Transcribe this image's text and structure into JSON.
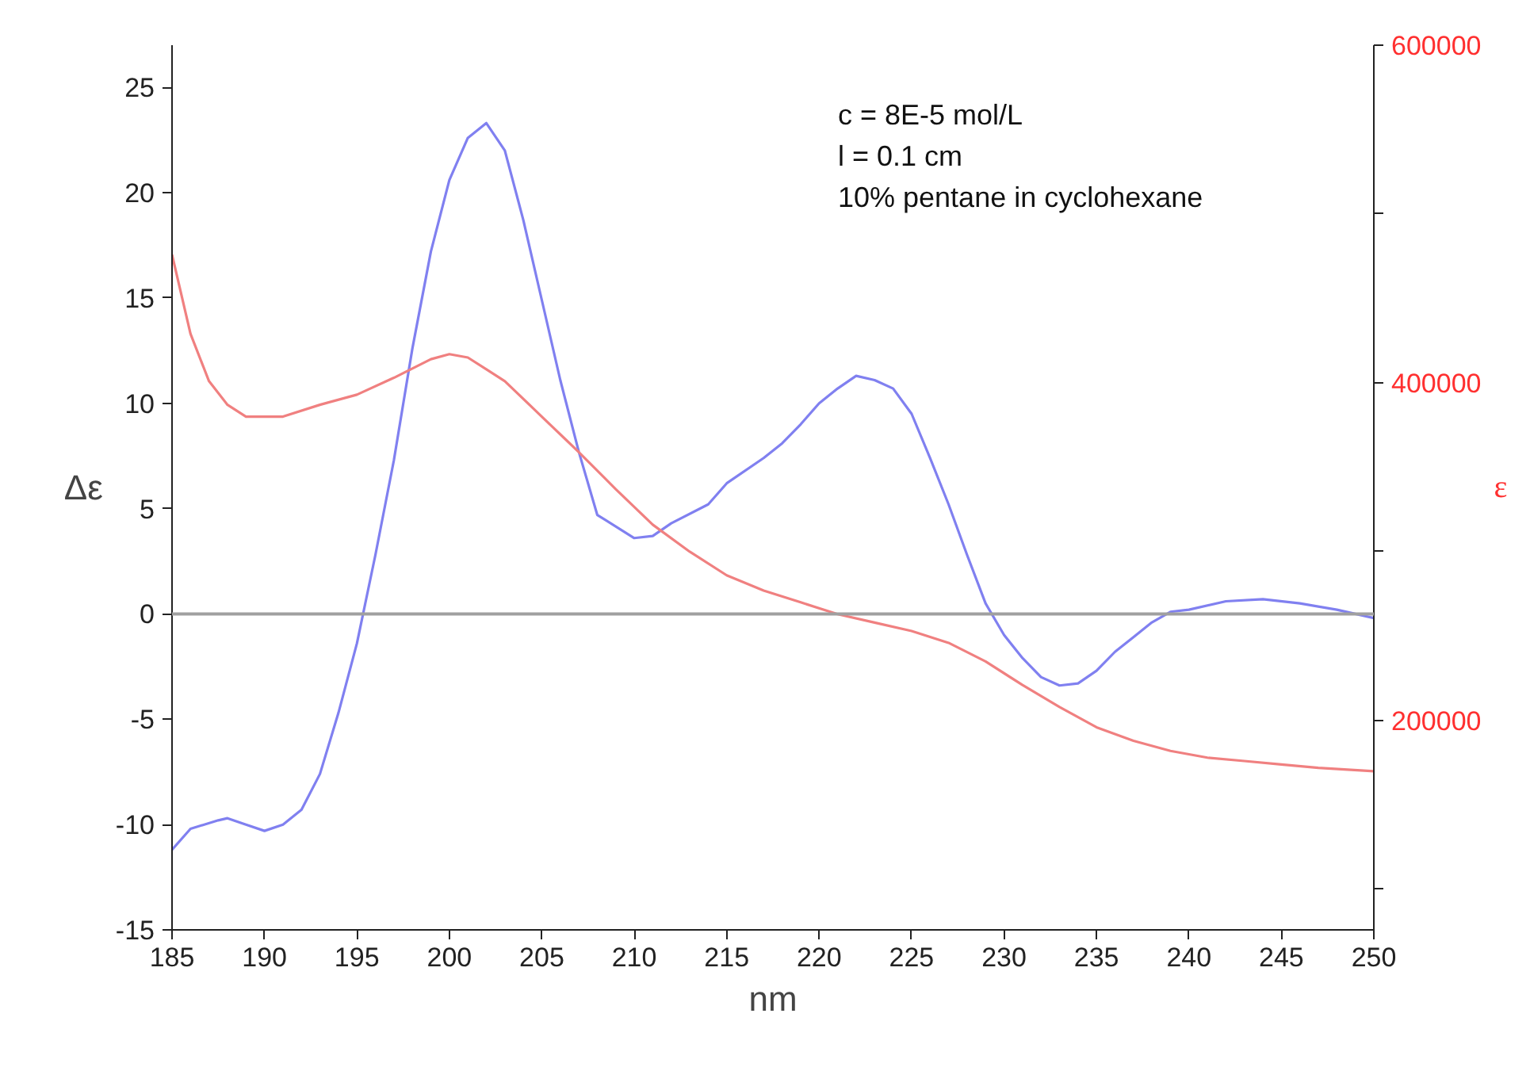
{
  "chart_data": {
    "type": "line",
    "xlabel": "nm",
    "ylabel": "Δε",
    "y2label": "ε",
    "annotations": [
      "c = 8E-5 mol/L",
      "l = 0.1 cm",
      "10% pentane in cyclohexane"
    ],
    "xlim": [
      185,
      250
    ],
    "xticks": [
      185,
      190,
      195,
      200,
      205,
      210,
      215,
      220,
      225,
      230,
      235,
      240,
      245,
      250
    ],
    "ylim": [
      -15,
      27
    ],
    "yticks": [
      -15,
      -10,
      -5,
      0,
      5,
      10,
      15,
      20,
      25
    ],
    "y2lim": [
      76000,
      600000
    ],
    "y2ticks": [
      {
        "value": 100000,
        "label": null
      },
      200000,
      {
        "value": 300000,
        "label": null
      },
      400000,
      {
        "value": 500000,
        "label": null
      },
      600000
    ],
    "grid": false,
    "ref_lines": [
      {
        "axis": "y",
        "value": 0,
        "color": "#a0a0a0"
      }
    ],
    "series": [
      {
        "color": "#8080f0",
        "x": [
          185,
          186,
          187.5,
          188,
          189,
          190,
          191,
          192,
          193,
          194,
          195,
          196,
          197,
          198,
          199,
          200,
          201,
          202,
          203,
          204,
          205,
          206,
          207,
          208,
          210,
          211,
          212,
          214,
          215,
          217,
          218,
          219,
          220,
          221,
          222,
          223,
          224,
          225,
          226,
          227,
          228,
          229,
          230,
          231,
          232,
          233,
          234,
          235,
          236,
          237,
          238,
          239,
          240,
          242,
          244,
          246,
          248,
          250
        ],
        "values": [
          -11.2,
          -10.2,
          -9.8,
          -9.7,
          -10.0,
          -10.3,
          -10.0,
          -9.3,
          -7.6,
          -4.7,
          -1.4,
          2.8,
          7.3,
          12.6,
          17.2,
          20.6,
          22.6,
          23.3,
          22.0,
          18.7,
          14.9,
          11.1,
          7.7,
          4.7,
          3.6,
          3.7,
          4.3,
          5.2,
          6.2,
          7.4,
          8.1,
          9.0,
          10.0,
          10.7,
          11.3,
          11.1,
          10.7,
          9.5,
          7.4,
          5.2,
          2.8,
          0.5,
          -1.0,
          -2.1,
          -3.0,
          -3.4,
          -3.3,
          -2.7,
          -1.8,
          -1.1,
          -0.4,
          0.1,
          0.2,
          0.6,
          0.7,
          0.5,
          0.2,
          -0.2
        ]
      },
      {
        "color": "#f08080",
        "axis": "y2",
        "x": [
          185,
          186,
          187,
          188,
          189,
          190,
          191,
          193,
          195,
          197,
          199,
          200,
          201,
          202,
          203,
          205,
          207,
          209,
          211,
          213,
          215,
          217,
          219,
          221,
          223,
          225,
          227,
          229,
          231,
          233,
          235,
          237,
          239,
          241,
          243,
          245,
          247,
          250
        ],
        "values": [
          476000,
          429000,
          401000,
          387000,
          380000,
          380000,
          380000,
          387000,
          393000,
          403000,
          414000,
          417000,
          415000,
          408000,
          401000,
          380000,
          359000,
          337000,
          316000,
          300000,
          286000,
          277000,
          270000,
          263000,
          258000,
          253000,
          246000,
          235000,
          221000,
          208000,
          196000,
          188000,
          182000,
          178000,
          176000,
          174000,
          172000,
          170000
        ]
      }
    ]
  }
}
